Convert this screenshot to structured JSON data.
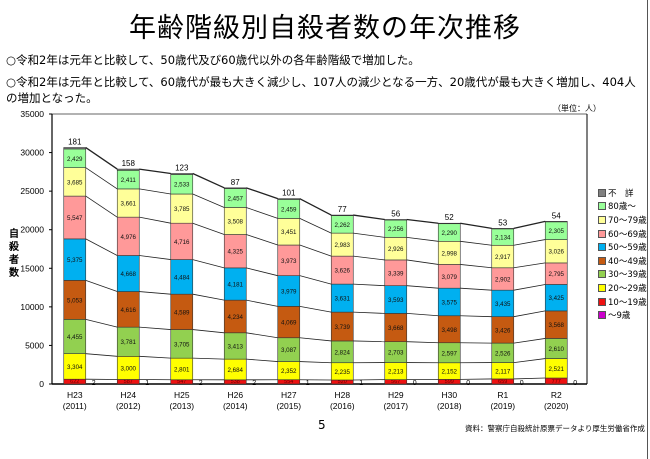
{
  "page": {
    "title": "年齢階級別自殺者数の年次推移",
    "bullets": [
      "○令和2年は元年と比較して、50歳代及び60歳代以外の各年齢階級で増加した。",
      "○令和2年は元年と比較して、60歳代が最も大きく減少し、107人の減少となる一方、20歳代が最も大きく増加し、404人の増加となった。"
    ],
    "unit_label": "（単位：人）",
    "page_number": "5",
    "source": "資料：警察庁自殺統計原票データより厚生労働省作成"
  },
  "chart_data": {
    "type": "bar",
    "stacked": true,
    "title": "",
    "xlabel": "",
    "ylabel": "自殺者数",
    "ylim": [
      0,
      35000
    ],
    "yticks": [
      0,
      5000,
      10000,
      15000,
      20000,
      25000,
      30000,
      35000
    ],
    "grid": false,
    "legend_position": "right",
    "categories": [
      "H23\n(2011)",
      "H24\n(2012)",
      "H25\n(2013)",
      "H26\n(2014)",
      "H27\n(2015)",
      "H28\n(2016)",
      "H29\n(2017)",
      "H30\n(2018)",
      "R1\n(2019)",
      "R2\n(2020)"
    ],
    "category_labels": [
      {
        "era": "H23",
        "year": "(2011)"
      },
      {
        "era": "H24",
        "year": "(2012)"
      },
      {
        "era": "H25",
        "year": "(2013)"
      },
      {
        "era": "H26",
        "year": "(2014)"
      },
      {
        "era": "H27",
        "year": "(2015)"
      },
      {
        "era": "H28",
        "year": "(2016)"
      },
      {
        "era": "H29",
        "year": "(2017)"
      },
      {
        "era": "H30",
        "year": "(2018)"
      },
      {
        "era": "R1",
        "year": "(2019)"
      },
      {
        "era": "R2",
        "year": "(2020)"
      }
    ],
    "series": [
      {
        "name": "～9歳",
        "color": "#cc00cc",
        "values": [
          2,
          1,
          2,
          2,
          1,
          1,
          0,
          0,
          0,
          0
        ]
      },
      {
        "name": "10～19歳",
        "color": "#ee1111",
        "values": [
          622,
          587,
          547,
          538,
          554,
          520,
          567,
          599,
          659,
          777
        ]
      },
      {
        "name": "20～29歳",
        "color": "#ffff00",
        "values": [
          3304,
          3000,
          2801,
          2684,
          2352,
          2235,
          2213,
          2152,
          2117,
          2521
        ]
      },
      {
        "name": "30～39歳",
        "color": "#92d050",
        "values": [
          4455,
          3781,
          3705,
          3413,
          3087,
          2824,
          2703,
          2597,
          2526,
          2610
        ]
      },
      {
        "name": "40～49歳",
        "color": "#c55a11",
        "values": [
          5053,
          4616,
          4589,
          4234,
          4069,
          3739,
          3668,
          3498,
          3426,
          3568
        ]
      },
      {
        "name": "50～59歳",
        "color": "#00b0f0",
        "values": [
          5375,
          4668,
          4484,
          4181,
          3979,
          3631,
          3593,
          3575,
          3435,
          3425
        ]
      },
      {
        "name": "60～69歳",
        "color": "#ff9999",
        "values": [
          5547,
          4976,
          4716,
          4325,
          3973,
          3626,
          3339,
          3079,
          2902,
          2795
        ]
      },
      {
        "name": "70～79歳",
        "color": "#ffff99",
        "values": [
          3685,
          3661,
          3785,
          3508,
          3451,
          2983,
          2926,
          2998,
          2917,
          3026
        ]
      },
      {
        "name": "80歳～",
        "color": "#99ff99",
        "values": [
          2429,
          2411,
          2533,
          2457,
          2459,
          2262,
          2256,
          2290,
          2134,
          2305
        ]
      },
      {
        "name": "不　詳",
        "color": "#808080",
        "values": [
          181,
          158,
          123,
          87,
          101,
          77,
          56,
          52,
          53,
          54
        ]
      }
    ],
    "legend_order": [
      "不　詳",
      "80歳～",
      "70～79歳",
      "60～69歳",
      "50～59歳",
      "40～49歳",
      "30～39歳",
      "20～29歳",
      "10～19歳",
      "～9歳"
    ]
  }
}
